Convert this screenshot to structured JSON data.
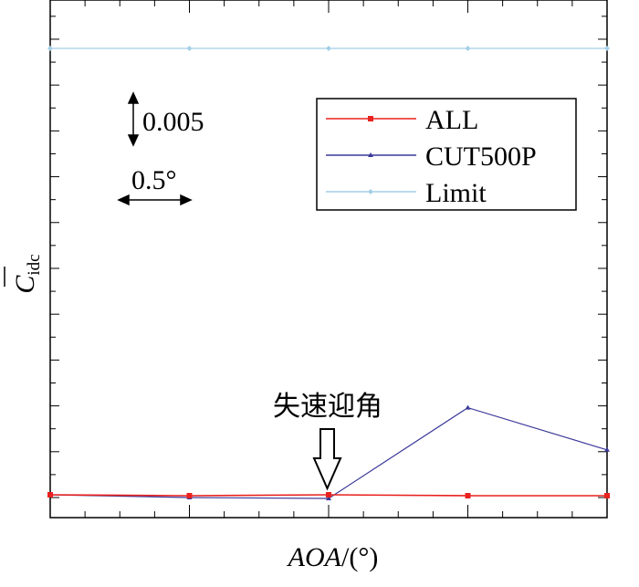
{
  "chart_data": {
    "type": "line",
    "xlabel_parts": [
      "AOA",
      "/(°)"
    ],
    "ylabel": "C",
    "ylabel_subscript": "idc",
    "xlim": [
      0,
      4
    ],
    "ylim": [
      0,
      0.052
    ],
    "grid": false,
    "legend_position": "top-right",
    "series": [
      {
        "name": "ALL",
        "color": "#e8221e",
        "marker": "square",
        "x": [
          0,
          1,
          2,
          3,
          4
        ],
        "y": [
          0.0003,
          0.0002,
          0.0003,
          0.0002,
          0.0002
        ]
      },
      {
        "name": "CUT500P",
        "color": "#3b3a9a",
        "marker": "triangle",
        "x": [
          0,
          1,
          2,
          3,
          4
        ],
        "y": [
          0.0003,
          0.0,
          -0.0001,
          0.0098,
          0.0052
        ]
      },
      {
        "name": "Limit",
        "color": "#a4cfe6",
        "marker": "diamond",
        "x": [
          0,
          1,
          2,
          3,
          4
        ],
        "y": [
          0.049,
          0.049,
          0.049,
          0.049,
          0.049
        ]
      }
    ],
    "scale_bars": {
      "vertical": "0.005",
      "horizontal": "0.5°"
    },
    "annotation": {
      "text": "失速迎角",
      "x": 2
    }
  }
}
